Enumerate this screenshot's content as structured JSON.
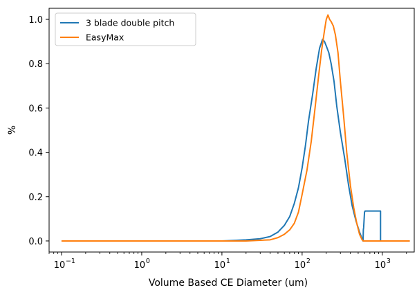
{
  "chart_data": {
    "type": "line",
    "xscale": "log",
    "xlabel": "Volume Based CE Diameter (um)",
    "ylabel": "%",
    "xlim": [
      0.07,
      2500
    ],
    "ylim": [
      -0.05,
      1.05
    ],
    "grid": false,
    "legend_position": "top-left",
    "x_ticks": [
      {
        "value": 0.1,
        "base": "10",
        "exp": "−1"
      },
      {
        "value": 1,
        "base": "10",
        "exp": "0"
      },
      {
        "value": 10,
        "base": "10",
        "exp": "1"
      },
      {
        "value": 100,
        "base": "10",
        "exp": "2"
      },
      {
        "value": 1000,
        "base": "10",
        "exp": "3"
      }
    ],
    "y_ticks": [
      {
        "value": 0.0,
        "label": "0.0"
      },
      {
        "value": 0.2,
        "label": "0.2"
      },
      {
        "value": 0.4,
        "label": "0.4"
      },
      {
        "value": 0.6,
        "label": "0.6"
      },
      {
        "value": 0.8,
        "label": "0.8"
      },
      {
        "value": 1.0,
        "label": "1.0"
      }
    ],
    "series": [
      {
        "name": "3 blade double pitch",
        "color": "#1f77b4",
        "x": [
          0.1,
          10,
          20,
          30,
          40,
          50,
          60,
          70,
          80,
          90,
          100,
          110,
          120,
          135,
          150,
          165,
          180,
          190,
          200,
          215,
          230,
          250,
          270,
          300,
          340,
          380,
          420,
          470,
          520,
          560,
          575,
          580,
          585,
          600,
          610,
          950,
          950,
          2200
        ],
        "y": [
          0.0,
          0.0,
          0.005,
          0.01,
          0.02,
          0.04,
          0.07,
          0.11,
          0.17,
          0.24,
          0.33,
          0.43,
          0.54,
          0.66,
          0.78,
          0.87,
          0.91,
          0.9,
          0.88,
          0.85,
          0.8,
          0.72,
          0.61,
          0.49,
          0.37,
          0.25,
          0.16,
          0.09,
          0.04,
          0.01,
          0.0,
          0.05,
          0.06,
          0.13,
          0.135,
          0.135,
          0.0,
          0.0
        ]
      },
      {
        "name": "EasyMax",
        "color": "#ff7f0e",
        "x": [
          0.1,
          20,
          40,
          50,
          60,
          70,
          80,
          90,
          100,
          115,
          130,
          145,
          160,
          175,
          190,
          200,
          210,
          220,
          230,
          245,
          260,
          280,
          300,
          330,
          360,
          400,
          440,
          480,
          520,
          560,
          580,
          2200
        ],
        "y": [
          0.0,
          0.0,
          0.005,
          0.015,
          0.03,
          0.05,
          0.08,
          0.13,
          0.21,
          0.32,
          0.45,
          0.6,
          0.74,
          0.86,
          0.95,
          1.0,
          1.02,
          1.0,
          0.99,
          0.97,
          0.93,
          0.85,
          0.72,
          0.56,
          0.4,
          0.25,
          0.15,
          0.08,
          0.03,
          0.005,
          0.0,
          0.0
        ]
      }
    ]
  }
}
